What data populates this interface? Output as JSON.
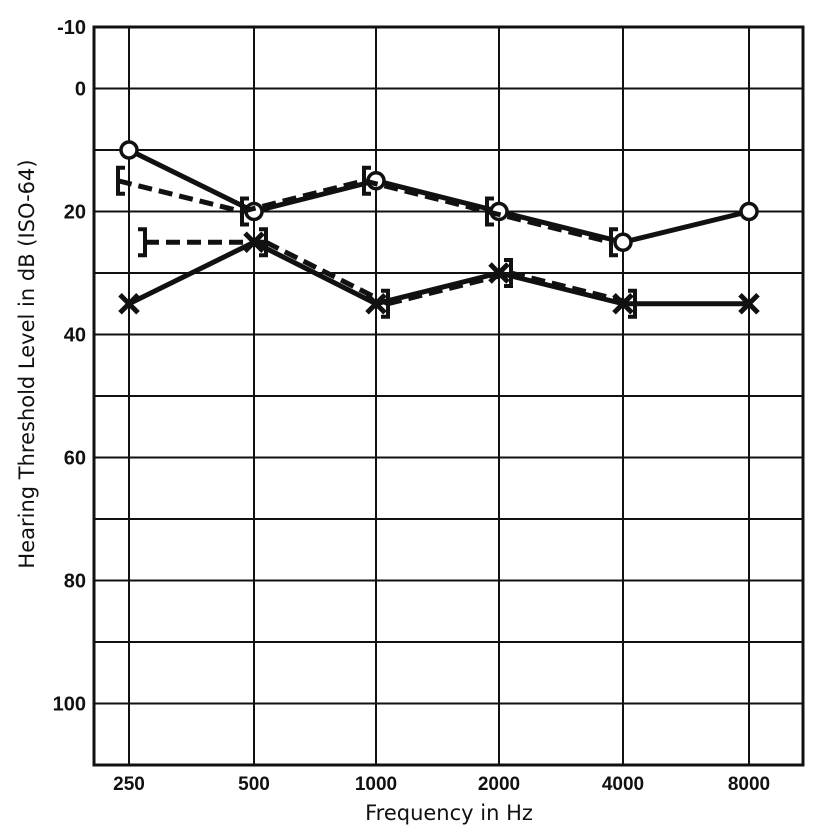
{
  "chart_data": {
    "type": "line",
    "title": "",
    "xlabel": "Frequency in Hz",
    "ylabel": "Hearing Threshold Level in dB (ISO-64)",
    "x_categories": [
      "250",
      "500",
      "1000",
      "2000",
      "4000",
      "8000"
    ],
    "y_ticks": [
      "-10",
      "0",
      "20",
      "40",
      "60",
      "80",
      "100"
    ],
    "ylim": [
      -10,
      110
    ],
    "y_inverted": true,
    "grid": true,
    "legend": "none",
    "series": [
      {
        "marker": "circle",
        "line": "solid",
        "values": [
          10,
          20,
          15,
          20,
          25,
          20
        ]
      },
      {
        "marker": "left-bracket",
        "line": "dashed",
        "values": [
          15,
          20,
          15,
          20,
          25,
          null
        ]
      },
      {
        "marker": "x",
        "line": "solid",
        "values": [
          35,
          25,
          35,
          30,
          35,
          35
        ]
      },
      {
        "marker": "right-bracket",
        "line": "dashed",
        "values": [
          25,
          25,
          35,
          30,
          35,
          null
        ]
      }
    ]
  }
}
